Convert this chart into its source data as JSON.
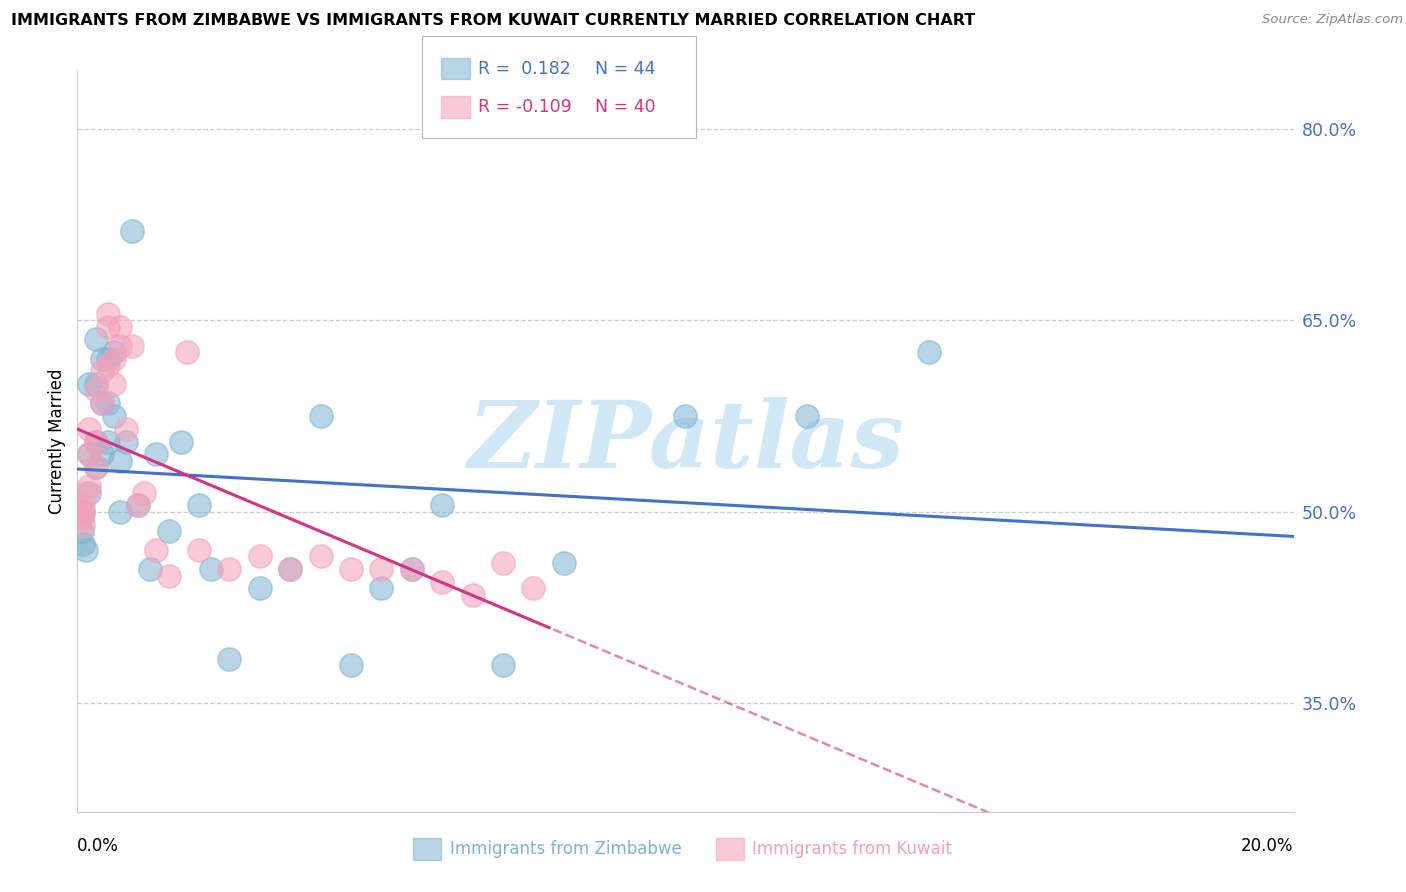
{
  "title": "IMMIGRANTS FROM ZIMBABWE VS IMMIGRANTS FROM KUWAIT CURRENTLY MARRIED CORRELATION CHART",
  "source": "Source: ZipAtlas.com",
  "ylabel": "Currently Married",
  "yticks": [
    0.35,
    0.5,
    0.65,
    0.8
  ],
  "ytick_labels": [
    "35.0%",
    "50.0%",
    "65.0%",
    "80.0%"
  ],
  "xmin": 0.0,
  "xmax": 0.2,
  "ymin": 0.265,
  "ymax": 0.845,
  "zimbabwe_x": [
    0.0005,
    0.0008,
    0.001,
    0.001,
    0.0015,
    0.002,
    0.002,
    0.002,
    0.003,
    0.003,
    0.003,
    0.003,
    0.004,
    0.004,
    0.004,
    0.005,
    0.005,
    0.005,
    0.006,
    0.006,
    0.007,
    0.007,
    0.008,
    0.009,
    0.01,
    0.012,
    0.013,
    0.015,
    0.017,
    0.02,
    0.022,
    0.025,
    0.03,
    0.035,
    0.04,
    0.045,
    0.05,
    0.055,
    0.06,
    0.07,
    0.08,
    0.1,
    0.12,
    0.14
  ],
  "zimbabwe_y": [
    0.5,
    0.485,
    0.5,
    0.475,
    0.47,
    0.515,
    0.545,
    0.6,
    0.535,
    0.555,
    0.6,
    0.635,
    0.545,
    0.585,
    0.62,
    0.555,
    0.585,
    0.62,
    0.575,
    0.625,
    0.5,
    0.54,
    0.555,
    0.72,
    0.505,
    0.455,
    0.545,
    0.485,
    0.555,
    0.505,
    0.455,
    0.385,
    0.44,
    0.455,
    0.575,
    0.38,
    0.44,
    0.455,
    0.505,
    0.38,
    0.46,
    0.575,
    0.575,
    0.625
  ],
  "kuwait_x": [
    0.0005,
    0.0008,
    0.001,
    0.001,
    0.001,
    0.0015,
    0.002,
    0.002,
    0.002,
    0.003,
    0.003,
    0.003,
    0.004,
    0.004,
    0.005,
    0.005,
    0.005,
    0.006,
    0.006,
    0.007,
    0.007,
    0.008,
    0.009,
    0.01,
    0.011,
    0.013,
    0.015,
    0.018,
    0.02,
    0.025,
    0.03,
    0.035,
    0.04,
    0.045,
    0.05,
    0.055,
    0.06,
    0.065,
    0.07,
    0.075
  ],
  "kuwait_y": [
    0.5,
    0.495,
    0.505,
    0.5,
    0.49,
    0.515,
    0.52,
    0.545,
    0.565,
    0.535,
    0.555,
    0.595,
    0.585,
    0.61,
    0.615,
    0.645,
    0.655,
    0.6,
    0.62,
    0.63,
    0.645,
    0.565,
    0.63,
    0.505,
    0.515,
    0.47,
    0.45,
    0.625,
    0.47,
    0.455,
    0.465,
    0.455,
    0.465,
    0.455,
    0.455,
    0.455,
    0.445,
    0.435,
    0.46,
    0.44
  ],
  "R_zimbabwe": 0.182,
  "N_zimbabwe": 44,
  "R_kuwait": -0.109,
  "N_kuwait": 40,
  "blue_color": "#7fb3d3",
  "pink_color": "#f4a0b8",
  "trend_blue": "#4472c4",
  "trend_pink": "#d63384",
  "axis_color": "#4472c4",
  "grid_color": "#cccccc",
  "watermark": "ZIPatlas",
  "watermark_color": "#d0e8f5"
}
